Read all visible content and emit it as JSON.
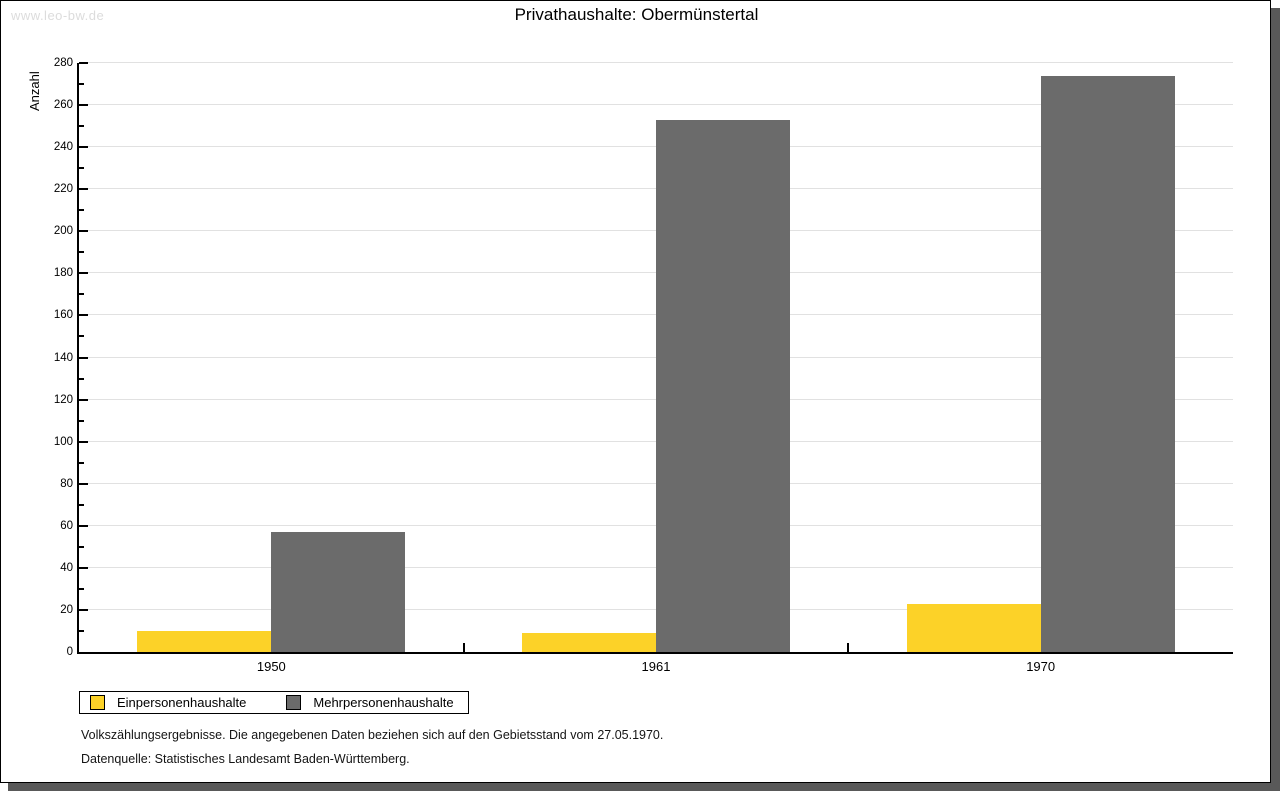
{
  "watermark": "www.leo-bw.de",
  "chart_data": {
    "type": "bar",
    "title": "Privathaushalte: Obermünstertal",
    "ylabel": "Anzahl",
    "xlabel": "",
    "categories": [
      "1950",
      "1961",
      "1970"
    ],
    "series": [
      {
        "name": "Einpersonenhaushalte",
        "color": "#FCD228",
        "values": [
          10,
          9,
          23
        ]
      },
      {
        "name": "Mehrpersonenhaushalte",
        "color": "#6B6B6B",
        "values": [
          57,
          253,
          274
        ]
      }
    ],
    "ylim": [
      0,
      280
    ],
    "y_major_step": 20,
    "y_minor_step": 10,
    "y_ticks": [
      0,
      20,
      40,
      60,
      80,
      100,
      120,
      140,
      160,
      180,
      200,
      220,
      240,
      260,
      280
    ],
    "grid": true,
    "legend_position": "bottom-left"
  },
  "footer": {
    "line1": "Volkszählungsergebnisse. Die angegebenen Daten beziehen sich auf den Gebietsstand vom 27.05.1970.",
    "line2": "Datenquelle: Statistisches Landesamt Baden-Württemberg."
  },
  "colors": {
    "grid": "#E1E1E1",
    "axis": "#000000",
    "watermark": "#DCDCDC",
    "shadow": "#595959",
    "text": "#000000"
  }
}
